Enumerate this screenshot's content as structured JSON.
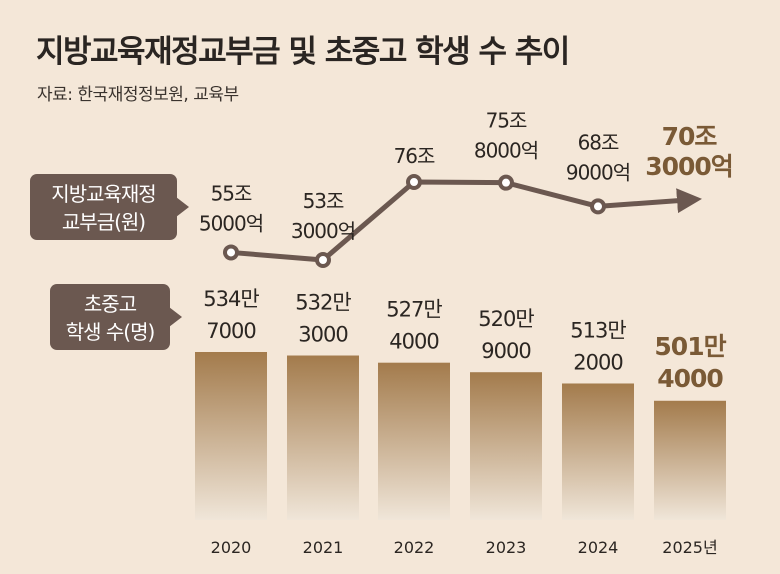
{
  "title": "지방교육재정교부금 및 초중고 학생 수 추이",
  "source": "자료: 한국재정정보원, 교육부",
  "colors": {
    "background": "#f4e7d8",
    "line": "#6b5850",
    "badge": "#6b5850",
    "bar_top": "#a37b4c",
    "bar_bottom": "#f0e6d9",
    "highlight": "#7a5a36"
  },
  "chart_data": [
    {
      "type": "line",
      "legend_label": [
        "지방교육재정",
        "교부금(원)"
      ],
      "x": [
        "2020",
        "2021",
        "2022",
        "2023",
        "2024",
        "2025"
      ],
      "values": [
        55.5,
        53.3,
        76,
        75.8,
        68.9,
        70.3
      ],
      "units": "조원",
      "ylim": [
        50,
        80
      ],
      "data_labels": [
        [
          "55조",
          "5000억"
        ],
        [
          "53조",
          "3000억"
        ],
        [
          "76조"
        ],
        [
          "75조",
          "8000억"
        ],
        [
          "68조",
          "9000억"
        ],
        [
          "70조",
          "3000억"
        ]
      ],
      "highlight_last": true
    },
    {
      "type": "bar",
      "legend_label": [
        "초중고",
        "학생 수(명)"
      ],
      "categories": [
        "2020",
        "2021",
        "2022",
        "2023",
        "2024",
        "2025년"
      ],
      "values": [
        5347000,
        5323000,
        5274000,
        5209000,
        5132000,
        5014000
      ],
      "units": "명",
      "ylim": [
        0,
        5347000
      ],
      "data_labels": [
        [
          "534만",
          "7000"
        ],
        [
          "532만",
          "3000"
        ],
        [
          "527만",
          "4000"
        ],
        [
          "520만",
          "9000"
        ],
        [
          "513만",
          "2000"
        ],
        [
          "501만",
          "4000"
        ]
      ],
      "highlight_last": true
    }
  ]
}
